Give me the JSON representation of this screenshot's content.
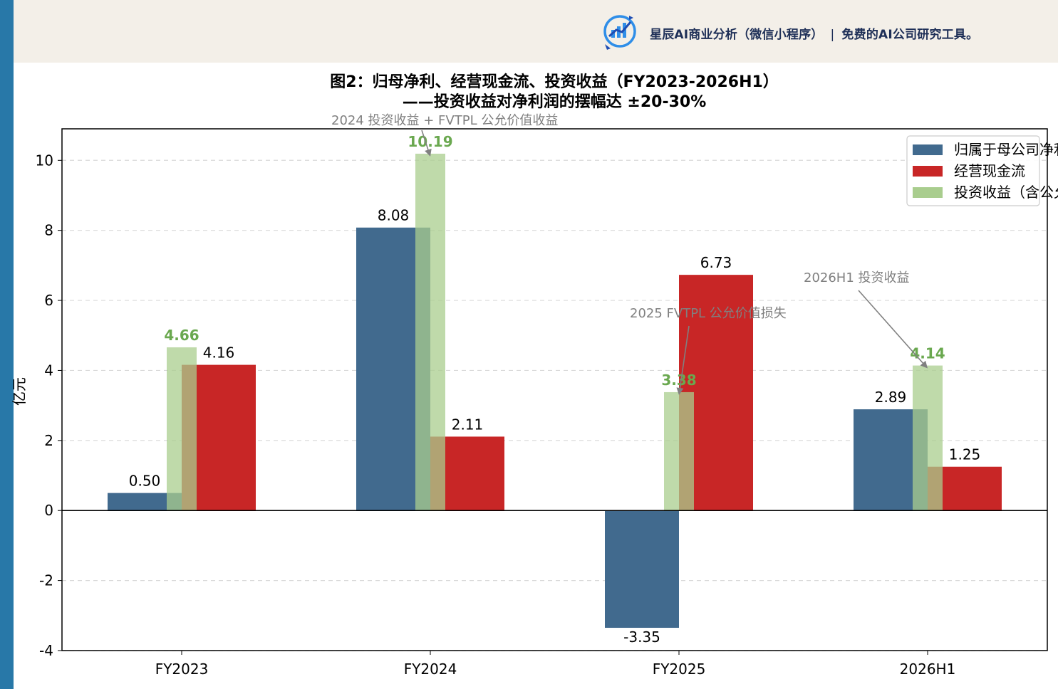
{
  "banner": {
    "logo": "chart-logo-icon",
    "app_name": "星辰AI商业分析（微信小程序）",
    "separator": "|",
    "slogan": "免费的AI公司研究工具。"
  },
  "chart_data": {
    "type": "bar",
    "title": "图2：归母净利、经营现金流、投资收益（FY2023-2026H1）",
    "subtitle": "——投资收益对净利润的摆幅达 ±20-30%",
    "ylabel": "亿元",
    "xlabel": "",
    "ylim": [
      -4,
      10.9
    ],
    "yticks": [
      -4,
      -2,
      0,
      2,
      4,
      6,
      8,
      10
    ],
    "grid": true,
    "legend_position": "top-right",
    "categories": [
      "FY2023",
      "FY2024",
      "FY2025",
      "2026H1"
    ],
    "series": [
      {
        "name": "归属于母公司净利润",
        "color": "#416a8e",
        "values": [
          0.5,
          8.08,
          -3.35,
          2.89
        ]
      },
      {
        "name": "经营现金流",
        "color": "#c82626",
        "values": [
          4.16,
          2.11,
          6.73,
          1.25
        ]
      },
      {
        "name": "投资收益（含公允价值）",
        "color": "#a9cd8e",
        "values": [
          4.66,
          10.19,
          3.38,
          4.14
        ]
      }
    ],
    "value_labels": [
      "0.50",
      "8.08",
      "-3.35",
      "2.89",
      "4.16",
      "2.11",
      "6.73",
      "1.25",
      "4.66",
      "10.19",
      "3.38",
      "4.14"
    ],
    "annotations": [
      {
        "text": "2024 投资收益 + FVTPL 公允价值收益",
        "category": "FY2024",
        "series": 2
      },
      {
        "text": "2025 FVTPL 公允价值损失",
        "category": "FY2025",
        "series": 2
      },
      {
        "text": "2026H1 投资收益",
        "category": "2026H1",
        "series": 2
      }
    ]
  }
}
